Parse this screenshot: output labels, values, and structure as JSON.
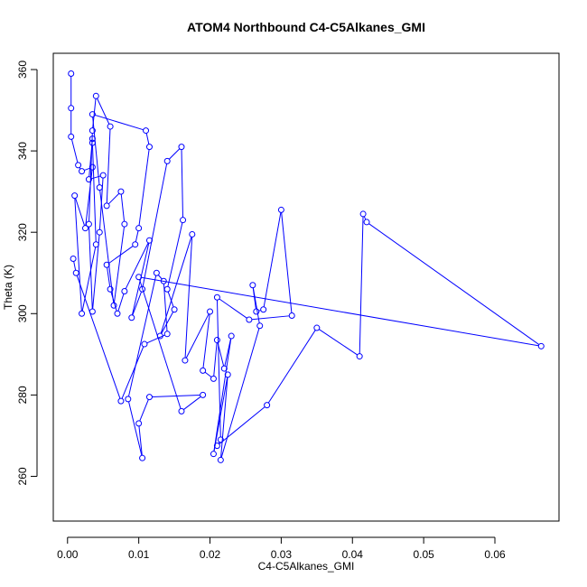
{
  "chart_data": {
    "type": "line",
    "title": "ATOM4 Northbound C4-C5Alkanes_GMI",
    "xlabel": "C4-C5Alkanes_GMI",
    "ylabel": "Theta (K)",
    "xlim": [
      -0.002,
      0.069
    ],
    "ylim": [
      249,
      364
    ],
    "xticks": [
      0.0,
      0.01,
      0.02,
      0.03,
      0.04,
      0.05,
      0.06
    ],
    "xtick_labels": [
      "0.00",
      "0.01",
      "0.02",
      "0.03",
      "0.04",
      "0.05",
      "0.06"
    ],
    "yticks": [
      260,
      280,
      300,
      320,
      340,
      360
    ],
    "ytick_labels": [
      "260",
      "280",
      "300",
      "320",
      "340",
      "360"
    ],
    "series_color": "#0000ff",
    "marker": "open-circle",
    "grid": false,
    "legend": "none",
    "series": [
      {
        "x": [
          0.0005,
          0.0005,
          0.0005,
          0.0015,
          0.002,
          0.0035,
          0.0025,
          0.001,
          0.002,
          0.004,
          0.0035,
          0.0035,
          0.003,
          0.005,
          0.0045,
          0.0035,
          0.003,
          0.0035,
          0.004,
          0.006,
          0.0055,
          0.0075,
          0.008,
          0.0065,
          0.0045,
          0.0035,
          0.011,
          0.0115,
          0.01,
          0.0095,
          0.0055,
          0.006,
          0.007,
          0.008,
          0.0115,
          0.009,
          0.0105,
          0.014,
          0.016,
          0.0162,
          0.014,
          0.015,
          0.013,
          0.0175,
          0.0165,
          0.02,
          0.019,
          0.0205,
          0.021,
          0.022,
          0.023,
          0.0205,
          0.0225,
          0.0215,
          0.027,
          0.026,
          0.0265,
          0.0275,
          0.03,
          0.0315,
          0.0255,
          0.021,
          0.0215,
          0.021,
          0.028,
          0.035,
          0.041,
          0.0415,
          0.042,
          0.0665,
          0.01,
          0.016,
          0.019,
          0.0115,
          0.01,
          0.0105,
          0.0085,
          0.0125,
          0.0135,
          0.014,
          0.0108,
          0.0075,
          0.0012,
          0.0008
        ],
        "y": [
          359,
          350.5,
          343.5,
          336.5,
          335,
          336,
          321,
          329,
          300,
          317,
          342,
          343,
          333,
          334,
          320,
          300.5,
          322,
          345,
          353.5,
          346,
          326.5,
          330,
          322,
          302,
          331,
          349,
          345,
          341,
          321,
          317,
          312,
          306,
          300,
          305.5,
          318,
          299,
          306,
          337.5,
          341,
          323,
          306,
          301,
          294.5,
          319.5,
          288.5,
          300.5,
          286,
          284,
          293.5,
          286.5,
          294.5,
          265.5,
          285,
          264,
          297,
          307,
          300.5,
          301,
          325.5,
          299.5,
          298.5,
          304,
          269,
          267.5,
          277.5,
          296.5,
          289.5,
          324.5,
          322.5,
          292,
          309,
          276,
          280,
          279.5,
          273,
          264.5,
          279,
          310,
          308,
          295,
          292.5,
          278.5,
          310,
          313.5
        ]
      }
    ]
  }
}
